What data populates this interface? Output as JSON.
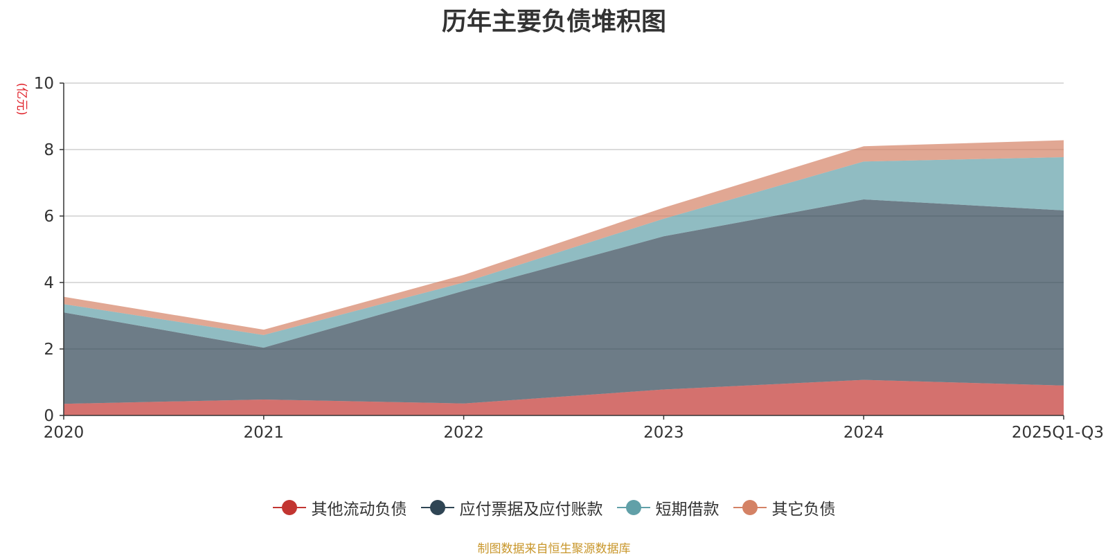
{
  "chart_data": {
    "type": "area",
    "stacked": true,
    "title": "历年主要负债堆积图",
    "ylabel": "(亿元)",
    "xlabel": "",
    "categories": [
      "2020",
      "2021",
      "2022",
      "2023",
      "2024",
      "2025Q1-Q3"
    ],
    "ylim": [
      0,
      10
    ],
    "yticks": [
      0,
      2,
      4,
      6,
      8,
      10
    ],
    "grid": true,
    "legend_position": "bottom",
    "series": [
      {
        "name": "其他流动负债",
        "color": "#c23531",
        "values": [
          0.35,
          0.48,
          0.36,
          0.78,
          1.07,
          0.9
        ]
      },
      {
        "name": "应付票据及应付账款",
        "color": "#2f4554",
        "values": [
          2.75,
          1.56,
          3.39,
          4.61,
          5.43,
          5.27
        ]
      },
      {
        "name": "短期借款",
        "color": "#61a0a8",
        "values": [
          0.25,
          0.38,
          0.25,
          0.53,
          1.14,
          1.6
        ]
      },
      {
        "name": "其它负债",
        "color": "#d48265",
        "values": [
          0.22,
          0.16,
          0.23,
          0.33,
          0.46,
          0.51
        ]
      }
    ]
  },
  "source_note": "制图数据来自恒生聚源数据库"
}
